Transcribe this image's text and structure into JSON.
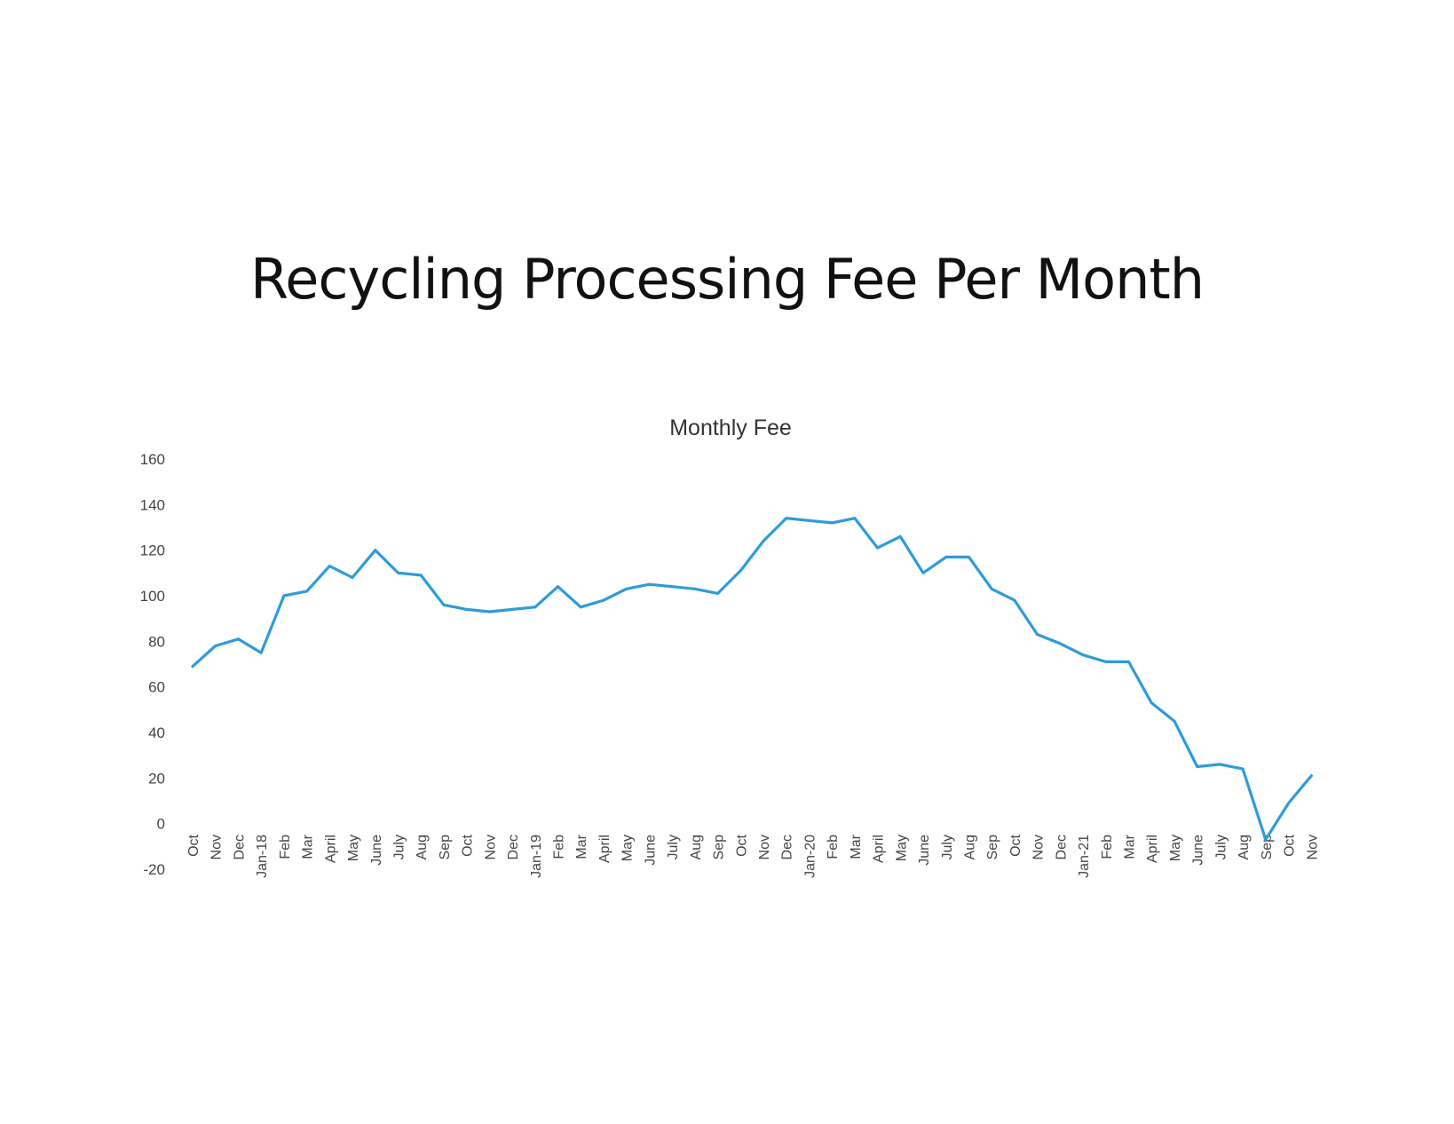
{
  "page_title": "Recycling Processing Fee Per Month",
  "chart_data": {
    "type": "line",
    "title": "Monthly Fee",
    "xlabel": "",
    "ylabel": "",
    "ylim": [
      -20,
      160
    ],
    "yticks": [
      -20,
      0,
      20,
      40,
      60,
      80,
      100,
      120,
      140,
      160
    ],
    "grid": false,
    "legend": "none",
    "line_color": "#2E9BDB",
    "categories": [
      "Oct",
      "Nov",
      "Dec",
      "Jan-18",
      "Feb",
      "Mar",
      "April",
      "May",
      "June",
      "July",
      "Aug",
      "Sep",
      "Oct",
      "Nov",
      "Dec",
      "Jan-19",
      "Feb",
      "Mar",
      "April",
      "May",
      "June",
      "July",
      "Aug",
      "Sep",
      "Oct",
      "Nov",
      "Dec",
      "Jan-20",
      "Feb",
      "Mar",
      "April",
      "May",
      "June",
      "July",
      "Aug",
      "Sep",
      "Oct",
      "Nov",
      "Dec",
      "Jan-21",
      "Feb",
      "Mar",
      "April",
      "May",
      "June",
      "July",
      "Aug",
      "Sep",
      "Oct",
      "Nov"
    ],
    "series": [
      {
        "values": [
          69,
          78,
          81,
          75,
          100,
          102,
          113,
          108,
          120,
          110,
          109,
          96,
          94,
          93,
          94,
          95,
          104,
          95,
          98,
          103,
          105,
          104,
          103,
          101,
          111,
          124,
          134,
          133,
          132,
          134,
          121,
          126,
          110,
          117,
          117,
          103,
          98,
          83,
          79,
          74,
          71,
          71,
          53,
          45,
          25,
          26,
          24,
          -7,
          9,
          21
        ]
      }
    ]
  }
}
